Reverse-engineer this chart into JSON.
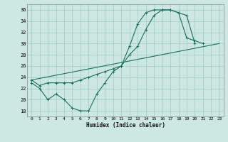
{
  "xlabel": "Humidex (Indice chaleur)",
  "bg_color": "#cde8e2",
  "grid_color": "#a8cfc8",
  "line_color": "#1a6e5e",
  "xlim": [
    -0.5,
    23.5
  ],
  "ylim": [
    17,
    37
  ],
  "yticks": [
    18,
    20,
    22,
    24,
    26,
    28,
    30,
    32,
    34,
    36
  ],
  "xticks": [
    0,
    1,
    2,
    3,
    4,
    5,
    6,
    7,
    8,
    9,
    10,
    11,
    12,
    13,
    14,
    15,
    16,
    17,
    18,
    19,
    20,
    21,
    22,
    23
  ],
  "line1_x": [
    0,
    1,
    2,
    3,
    4,
    5,
    6,
    7,
    8,
    9,
    10,
    11,
    12,
    13,
    14,
    15,
    16,
    17,
    18,
    19,
    20,
    21
  ],
  "line1_y": [
    23,
    22,
    20,
    21,
    20,
    18.5,
    18,
    18,
    21,
    23,
    25,
    26,
    29.5,
    33.5,
    35.5,
    36,
    36,
    36,
    35.5,
    31,
    30.5,
    30
  ],
  "line2_x": [
    0,
    1,
    2,
    3,
    4,
    5,
    6,
    7,
    8,
    9,
    10,
    11,
    12,
    13,
    14,
    15,
    16,
    17,
    18,
    19,
    20
  ],
  "line2_y": [
    23.5,
    22.5,
    23,
    23,
    23,
    23,
    23.5,
    24,
    24.5,
    25,
    25.5,
    26,
    28,
    29.5,
    32.5,
    35,
    36,
    36,
    35.5,
    35,
    30
  ],
  "line3_x": [
    0,
    23
  ],
  "line3_y": [
    23.5,
    30
  ]
}
